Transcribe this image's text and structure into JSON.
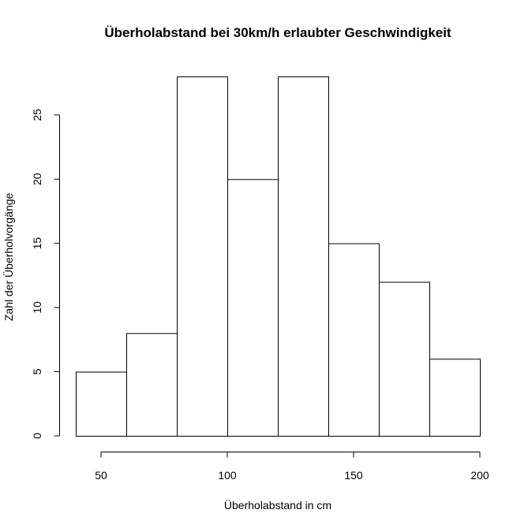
{
  "chart_data": {
    "type": "bar",
    "title": "Überholabstand bei 30km/h erlaubter Geschwindigkeit",
    "xlabel": "Überholabstand in cm",
    "ylabel": "Zahl der Überholvorgänge",
    "bins": [
      {
        "start": 40,
        "end": 60,
        "count": 5
      },
      {
        "start": 60,
        "end": 80,
        "count": 8
      },
      {
        "start": 80,
        "end": 100,
        "count": 28
      },
      {
        "start": 100,
        "end": 120,
        "count": 20
      },
      {
        "start": 120,
        "end": 140,
        "count": 28
      },
      {
        "start": 140,
        "end": 160,
        "count": 15
      },
      {
        "start": 160,
        "end": 180,
        "count": 12
      },
      {
        "start": 180,
        "end": 200,
        "count": 6
      }
    ],
    "xlim": [
      40,
      200
    ],
    "ylim": [
      0,
      28
    ],
    "x_ticks": [
      50,
      100,
      150,
      200
    ],
    "y_ticks": [
      0,
      5,
      10,
      15,
      20,
      25
    ],
    "grid": false,
    "legend": "none",
    "bar_fill": "#ffffff",
    "bar_stroke": "#000000"
  }
}
